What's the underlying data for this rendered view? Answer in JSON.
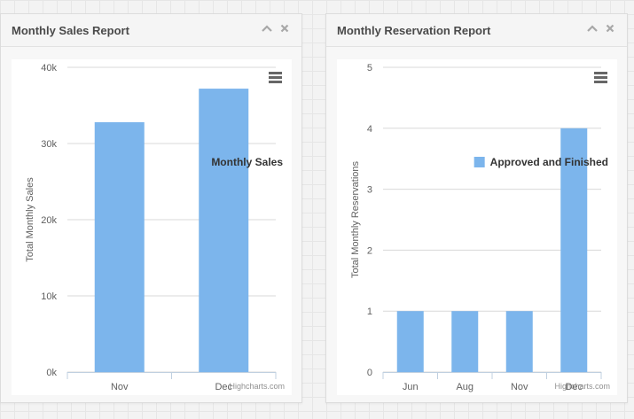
{
  "panels": {
    "sales": {
      "title": "Monthly Sales Report"
    },
    "reservation": {
      "title": "Monthly Reservation Report"
    }
  },
  "icons": {
    "collapse": "chevron-up-icon",
    "close": "close-icon",
    "menu": "hamburger-menu-icon"
  },
  "colors": {
    "bar": "#7cb5ec",
    "grid": "#d8d8d8",
    "axis_text": "#606060",
    "header_text": "#4a4a4a"
  },
  "credits": "Highcharts.com",
  "chart_data": [
    {
      "type": "bar",
      "categories": [
        "Nov",
        "Dec"
      ],
      "series": [
        {
          "name": "Monthly Sales",
          "values": [
            32800,
            37200
          ]
        }
      ],
      "ylabel": "Total Monthly Sales",
      "ylim": [
        0,
        40000
      ],
      "yticks": [
        "0k",
        "10k",
        "20k",
        "30k",
        "40k"
      ],
      "ytick_values": [
        0,
        10000,
        20000,
        30000,
        40000
      ],
      "grid": true,
      "legend": "right"
    },
    {
      "type": "bar",
      "categories": [
        "Jun",
        "Aug",
        "Nov",
        "Dec"
      ],
      "series": [
        {
          "name": "Approved and Finished",
          "values": [
            1,
            1,
            1,
            4
          ]
        }
      ],
      "ylabel": "Total Monthly Reservations",
      "ylim": [
        0,
        5
      ],
      "yticks": [
        "0",
        "1",
        "2",
        "3",
        "4",
        "5"
      ],
      "ytick_values": [
        0,
        1,
        2,
        3,
        4,
        5
      ],
      "grid": true,
      "legend": "right"
    }
  ]
}
